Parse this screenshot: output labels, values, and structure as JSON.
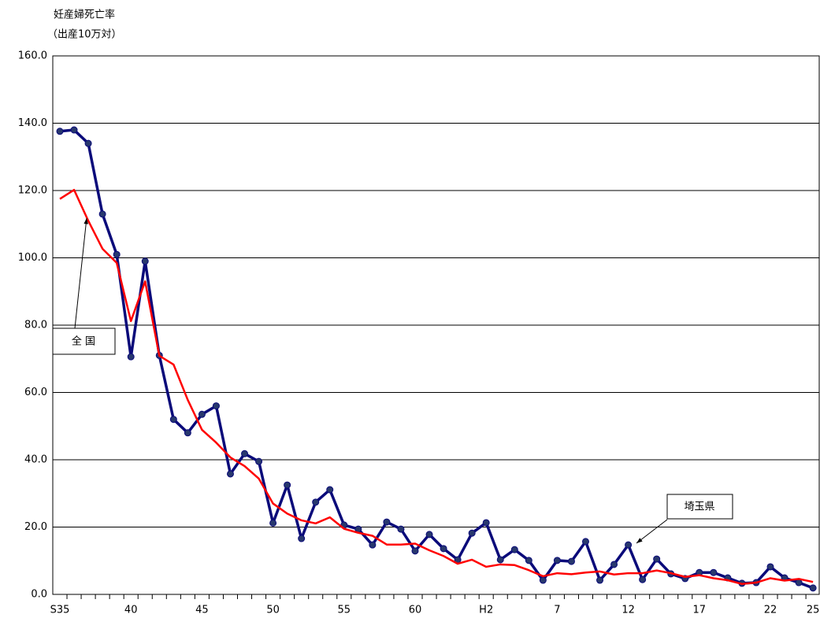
{
  "chart_data": {
    "type": "line",
    "title": "妊産婦死亡率",
    "subtitle": "（出産10万対）",
    "categories": [
      "S35",
      null,
      null,
      null,
      null,
      "40",
      null,
      null,
      null,
      null,
      "45",
      null,
      null,
      null,
      null,
      "50",
      null,
      null,
      null,
      null,
      "55",
      null,
      null,
      null,
      null,
      "60",
      null,
      null,
      null,
      null,
      "H2",
      null,
      null,
      null,
      null,
      "7",
      null,
      null,
      null,
      null,
      "12",
      null,
      null,
      null,
      null,
      "17",
      null,
      null,
      null,
      null,
      "22",
      null,
      null,
      "25"
    ],
    "series": [
      {
        "name": "埼玉県",
        "color": "#0a0a7a",
        "markers": true,
        "values": [
          137.6,
          138.0,
          134.0,
          113.0,
          101.0,
          70.6,
          99.0,
          71.0,
          52.0,
          48.0,
          53.5,
          56.0,
          35.8,
          41.8,
          39.5,
          21.2,
          32.5,
          16.6,
          27.4,
          31.1,
          20.6,
          19.4,
          14.7,
          21.5,
          19.4,
          12.9,
          17.8,
          13.6,
          10.3,
          18.2,
          21.3,
          10.3,
          13.3,
          10.1,
          4.2,
          10.1,
          9.8,
          15.7,
          4.2,
          8.9,
          14.7,
          4.4,
          10.5,
          6.1,
          4.7,
          6.5,
          6.5,
          4.9,
          3.3,
          3.5,
          8.2,
          4.9,
          3.5,
          1.9
        ]
      },
      {
        "name": "全 国",
        "color": "#ff0000",
        "markers": false,
        "values": [
          117.5,
          120.2,
          111.0,
          102.7,
          98.5,
          81.2,
          93.0,
          70.9,
          68.3,
          57.8,
          48.9,
          45.1,
          40.7,
          38.1,
          34.4,
          27.0,
          24.0,
          22.0,
          21.1,
          22.9,
          19.5,
          18.3,
          17.4,
          14.8,
          14.8,
          15.1,
          13.1,
          11.4,
          9.1,
          10.3,
          8.2,
          8.9,
          8.7,
          7.2,
          5.4,
          6.3,
          6.0,
          6.5,
          6.8,
          5.9,
          6.3,
          6.3,
          7.1,
          6.3,
          5.2,
          5.7,
          4.8,
          4.2,
          3.1,
          3.5,
          4.8,
          4.1,
          4.6,
          3.7
        ]
      }
    ],
    "ylim": [
      0,
      160
    ],
    "yticks": [
      {
        "value": 0,
        "label": "0.0"
      },
      {
        "value": 20,
        "label": "20.0"
      },
      {
        "value": 40,
        "label": "40.0"
      },
      {
        "value": 60,
        "label": "60.0"
      },
      {
        "value": 80,
        "label": "80.0"
      },
      {
        "value": 100,
        "label": "100.0"
      },
      {
        "value": 120,
        "label": "120.0"
      },
      {
        "value": 140,
        "label": "140.0"
      },
      {
        "value": 160,
        "label": "160.0"
      }
    ],
    "grid": true
  }
}
